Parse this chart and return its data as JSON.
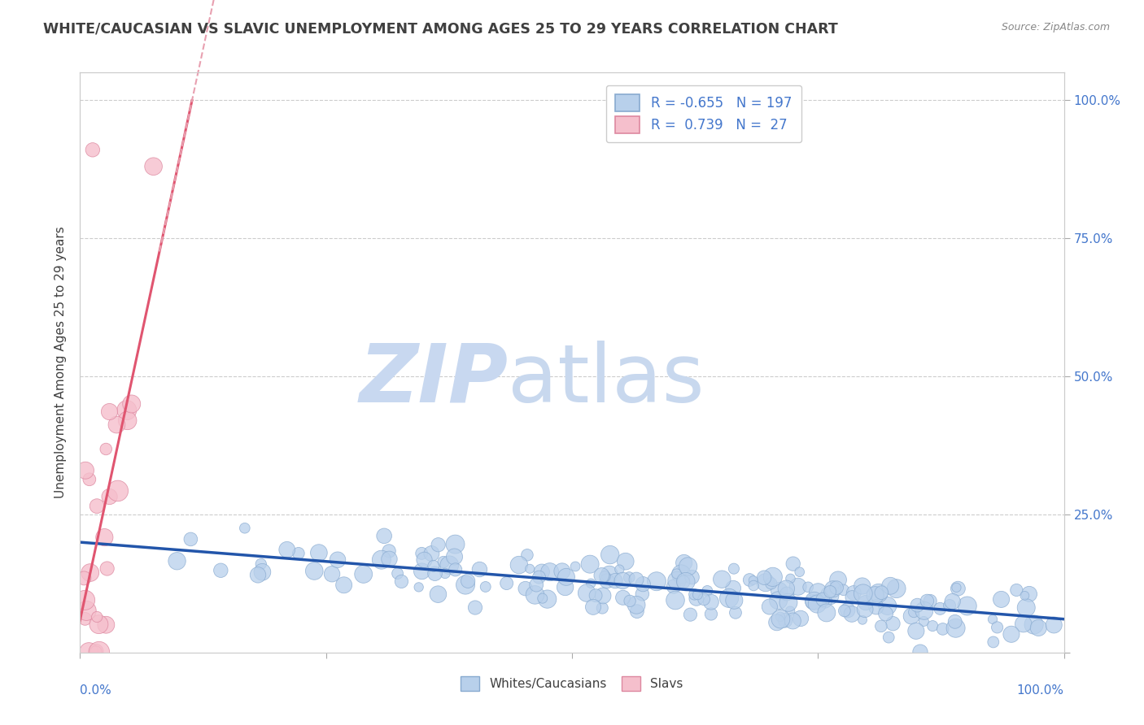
{
  "title": "WHITE/CAUCASIAN VS SLAVIC UNEMPLOYMENT AMONG AGES 25 TO 29 YEARS CORRELATION CHART",
  "source": "Source: ZipAtlas.com",
  "ylabel": "Unemployment Among Ages 25 to 29 years",
  "right_yticklabels": [
    "",
    "25.0%",
    "50.0%",
    "75.0%",
    "100.0%"
  ],
  "legend_blue_label": "Whites/Caucasians",
  "legend_pink_label": "Slavs",
  "legend_blue_R": -0.655,
  "legend_blue_N": 197,
  "legend_pink_R": 0.739,
  "legend_pink_N": 27,
  "blue_color": "#b8d0eb",
  "blue_line_color": "#2255aa",
  "pink_color": "#f5bfcc",
  "pink_line_color": "#e05570",
  "pink_dash_color": "#e8a0b0",
  "blue_edge_color": "#88aad0",
  "pink_edge_color": "#dd88a0",
  "watermark_zip_color": "#c8d8f0",
  "watermark_atlas_color": "#c8d8ee",
  "title_color": "#404040",
  "axis_label_color": "#4477cc",
  "grid_color": "#cccccc",
  "background_color": "#ffffff",
  "seed": 42,
  "n_blue": 197,
  "n_pink": 27
}
